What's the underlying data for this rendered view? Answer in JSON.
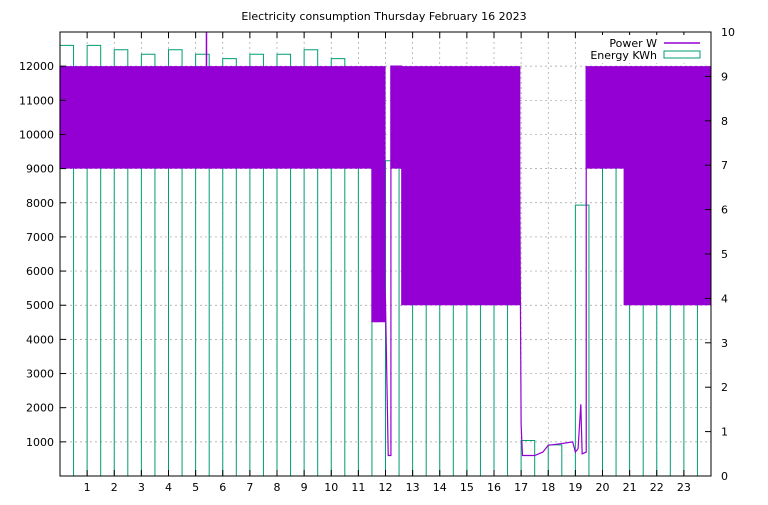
{
  "chart_data": {
    "type": "line",
    "title": "Electricity consumption Thursday February 16 2023",
    "xlabel": "",
    "ylabel": "",
    "y2label": "",
    "xlim": [
      0,
      24
    ],
    "ylim": [
      0,
      13000
    ],
    "y2lim": [
      0,
      10
    ],
    "x_ticks": [
      "1",
      "2",
      "3",
      "4",
      "5",
      "6",
      "7",
      "8",
      "9",
      "10",
      "11",
      "12",
      "13",
      "14",
      "15",
      "16",
      "17",
      "18",
      "19",
      "20",
      "21",
      "22",
      "23"
    ],
    "y_ticks": [
      "1000",
      "2000",
      "3000",
      "4000",
      "5000",
      "6000",
      "7000",
      "8000",
      "9000",
      "10000",
      "11000",
      "12000"
    ],
    "y2_ticks": [
      "0",
      "1",
      "2",
      "3",
      "4",
      "5",
      "6",
      "7",
      "8",
      "9",
      "10"
    ],
    "grid": true,
    "legend_position": "top-right",
    "series": [
      {
        "name": "Power W",
        "color": "#9400d3",
        "axis": "y",
        "style": "line",
        "bands": [
          [
            0,
            11.5,
            9000,
            12000
          ],
          [
            11.5,
            12.0,
            4500,
            12000
          ],
          [
            12.2,
            12.6,
            9000,
            12000
          ],
          [
            12.6,
            16.95,
            5000,
            12000
          ],
          [
            19.4,
            20.8,
            9000,
            12000
          ],
          [
            20.8,
            24,
            5000,
            12000
          ]
        ],
        "spike": {
          "x": 5.4,
          "y": 13000
        },
        "points": [
          [
            11.5,
            12000
          ],
          [
            11.65,
            4500
          ],
          [
            11.8,
            9200
          ],
          [
            12.0,
            5100
          ],
          [
            12.1,
            600
          ],
          [
            12.2,
            600
          ],
          [
            12.2,
            12000
          ],
          [
            12.6,
            12000
          ],
          [
            16.95,
            8300
          ],
          [
            17.0,
            1500
          ],
          [
            17.05,
            600
          ],
          [
            17.5,
            600
          ],
          [
            17.8,
            700
          ],
          [
            18.0,
            900
          ],
          [
            18.5,
            950
          ],
          [
            18.9,
            1000
          ],
          [
            19.0,
            700
          ],
          [
            19.1,
            800
          ],
          [
            19.2,
            2100
          ],
          [
            19.25,
            650
          ],
          [
            19.4,
            700
          ],
          [
            19.4,
            12000
          ]
        ]
      },
      {
        "name": "Energy KWh",
        "color": "#009e73",
        "axis": "y2",
        "style": "impulse-steps",
        "x": [
          0.25,
          0.75,
          1.25,
          1.75,
          2.25,
          2.75,
          3.25,
          3.75,
          4.25,
          4.75,
          5.25,
          5.75,
          6.25,
          6.75,
          7.25,
          7.75,
          8.25,
          8.75,
          9.25,
          9.75,
          10.25,
          10.75,
          11.25,
          11.75,
          12.25,
          12.75,
          13.25,
          13.75,
          14.25,
          14.75,
          15.25,
          15.75,
          16.25,
          16.75,
          17.25,
          17.75,
          18.25,
          18.75,
          19.25,
          19.75,
          20.25,
          20.75,
          21.25,
          21.75,
          22.25,
          22.75,
          23.25,
          23.75
        ],
        "values": [
          9.7,
          0,
          9.7,
          0,
          9.6,
          0,
          9.5,
          0,
          9.6,
          0,
          9.5,
          0,
          9.4,
          0,
          9.5,
          0,
          9.5,
          0,
          9.6,
          0,
          9.4,
          0,
          9.0,
          0,
          7.1,
          0,
          7.8,
          0,
          7.6,
          0,
          7.4,
          0,
          6.8,
          0,
          0.8,
          0,
          0.7,
          0,
          6.1,
          0,
          8.7,
          0,
          7.4,
          0,
          6.2,
          0,
          6.3,
          0
        ]
      }
    ]
  }
}
